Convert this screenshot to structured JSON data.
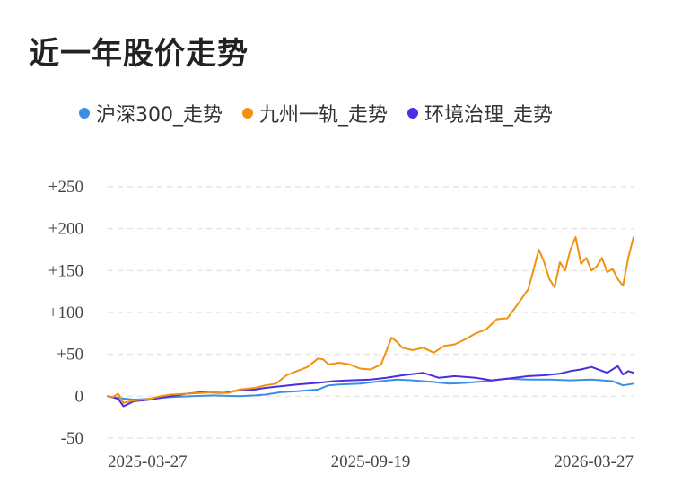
{
  "title": "近一年股价走势",
  "colors": {
    "hs300": "#3a8ee6",
    "jiuzhou": "#f0920c",
    "huanjing": "#4a2ee0",
    "grid": "#e6e6e6"
  },
  "chart_data": {
    "type": "line",
    "title": "近一年股价走势",
    "xlabel": "",
    "ylabel": "",
    "ylim": [
      -50,
      250
    ],
    "y_ticks": [
      250,
      200,
      150,
      100,
      50,
      0,
      -50
    ],
    "y_tick_labels": [
      "+250",
      "+200",
      "+150",
      "+100",
      "+50",
      "0",
      "-50"
    ],
    "x_tick_labels": [
      "2025-03-27",
      "2025-09-19",
      "2026-03-27"
    ],
    "x_ticks": [
      0,
      0.5,
      1
    ],
    "grid": true,
    "legend_position": "top",
    "series": [
      {
        "name": "沪深300_走势",
        "color": "#3a8ee6",
        "x": [
          0,
          0.02,
          0.05,
          0.08,
          0.12,
          0.16,
          0.2,
          0.25,
          0.28,
          0.3,
          0.33,
          0.36,
          0.4,
          0.42,
          0.44,
          0.48,
          0.52,
          0.55,
          0.58,
          0.62,
          0.65,
          0.68,
          0.72,
          0.76,
          0.8,
          0.84,
          0.88,
          0.92,
          0.96,
          0.98,
          1.0
        ],
        "values": [
          0,
          -2,
          -4,
          -3,
          -1,
          0,
          1,
          0,
          1,
          2,
          5,
          6,
          8,
          13,
          14,
          15,
          18,
          20,
          19,
          17,
          15,
          16,
          18,
          21,
          20,
          20,
          19,
          20,
          18,
          13,
          15
        ]
      },
      {
        "name": "九州一轨_走势",
        "color": "#f0920c",
        "x": [
          0,
          0.01,
          0.02,
          0.03,
          0.05,
          0.08,
          0.1,
          0.12,
          0.15,
          0.18,
          0.2,
          0.23,
          0.25,
          0.28,
          0.3,
          0.32,
          0.34,
          0.36,
          0.38,
          0.4,
          0.41,
          0.42,
          0.44,
          0.46,
          0.48,
          0.5,
          0.52,
          0.54,
          0.55,
          0.56,
          0.58,
          0.6,
          0.62,
          0.64,
          0.66,
          0.68,
          0.7,
          0.72,
          0.74,
          0.76,
          0.78,
          0.8,
          0.82,
          0.83,
          0.84,
          0.85,
          0.86,
          0.87,
          0.88,
          0.89,
          0.9,
          0.91,
          0.92,
          0.93,
          0.94,
          0.95,
          0.96,
          0.97,
          0.98,
          0.99,
          1.0
        ],
        "values": [
          0,
          -1,
          3,
          -8,
          -5,
          -3,
          0,
          2,
          3,
          4,
          5,
          4,
          8,
          10,
          13,
          15,
          25,
          30,
          35,
          45,
          44,
          38,
          40,
          38,
          33,
          32,
          38,
          70,
          65,
          58,
          55,
          58,
          52,
          60,
          62,
          68,
          75,
          80,
          92,
          93,
          110,
          128,
          175,
          160,
          140,
          130,
          160,
          150,
          175,
          190,
          158,
          165,
          150,
          155,
          165,
          148,
          152,
          140,
          132,
          165,
          190
        ]
      },
      {
        "name": "环境治理_走势",
        "color": "#4a2ee0",
        "x": [
          0,
          0.02,
          0.03,
          0.05,
          0.08,
          0.1,
          0.12,
          0.15,
          0.18,
          0.22,
          0.25,
          0.28,
          0.3,
          0.33,
          0.36,
          0.4,
          0.43,
          0.46,
          0.5,
          0.53,
          0.56,
          0.6,
          0.63,
          0.66,
          0.7,
          0.73,
          0.76,
          0.8,
          0.83,
          0.86,
          0.88,
          0.9,
          0.92,
          0.95,
          0.97,
          0.98,
          0.99,
          1.0
        ],
        "values": [
          0,
          -3,
          -12,
          -6,
          -4,
          -2,
          0,
          3,
          5,
          4,
          7,
          8,
          10,
          12,
          14,
          16,
          18,
          19,
          20,
          22,
          25,
          28,
          22,
          24,
          22,
          19,
          21,
          24,
          25,
          27,
          30,
          32,
          35,
          28,
          36,
          26,
          30,
          28
        ]
      }
    ]
  }
}
